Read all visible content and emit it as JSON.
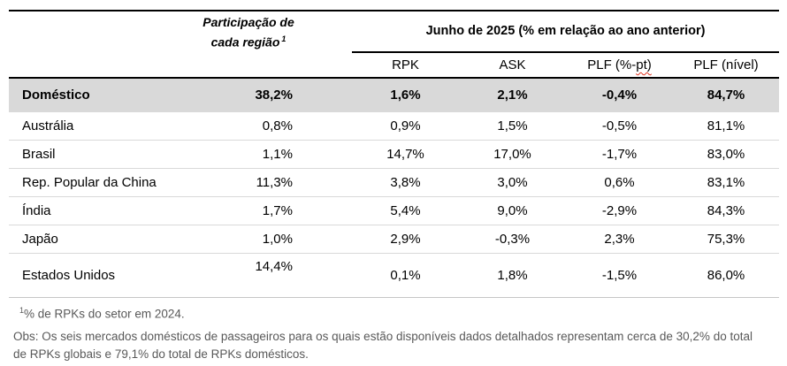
{
  "table": {
    "header": {
      "participation_line1": "Participação de",
      "participation_line2": "cada região",
      "participation_sup": "1",
      "period_title": "Junho de 2025 (% em relação ao ano anterior)",
      "columns": [
        "RPK",
        "ASK",
        "PLF (%-pt)",
        "PLF (nível)"
      ],
      "plf_pt_parts": {
        "prefix": "PLF (%-",
        "marked": "pt)"
      }
    },
    "rows": [
      {
        "region": "Doméstico",
        "participation": "38,2%",
        "rpk": "1,6%",
        "ask": "2,1%",
        "plf_pt": "-0,4%",
        "plf_nivel": "84,7%"
      },
      {
        "region": "Austrália",
        "participation": "0,8%",
        "rpk": "0,9%",
        "ask": "1,5%",
        "plf_pt": "-0,5%",
        "plf_nivel": "81,1%"
      },
      {
        "region": "Brasil",
        "participation": "1,1%",
        "rpk": "14,7%",
        "ask": "17,0%",
        "plf_pt": "-1,7%",
        "plf_nivel": "83,0%"
      },
      {
        "region": "Rep. Popular da China",
        "participation": "11,3%",
        "rpk": "3,8%",
        "ask": "3,0%",
        "plf_pt": "0,6%",
        "plf_nivel": "83,1%"
      },
      {
        "region": "Índia",
        "participation": "1,7%",
        "rpk": "5,4%",
        "ask": "9,0%",
        "plf_pt": "-2,9%",
        "plf_nivel": "84,3%"
      },
      {
        "region": "Japão",
        "participation": "1,0%",
        "rpk": "2,9%",
        "ask": "-0,3%",
        "plf_pt": "2,3%",
        "plf_nivel": "75,3%"
      },
      {
        "region": "Estados Unidos",
        "participation": "14,4%",
        "rpk": "0,1%",
        "ask": "1,8%",
        "plf_pt": "-1,5%",
        "plf_nivel": "86,0%"
      }
    ]
  },
  "footnotes": {
    "fn1_sup": "1",
    "fn1_text": "% de RPKs do setor em 2024.",
    "obs_lines": [
      "Obs: Os seis mercados domésticos de passageiros para os quais estão disponíveis dados detalhados representam cerca de 30,2% do total",
      "de RPKs globais e 79,1% do total de RPKs domésticos."
    ]
  },
  "colors": {
    "highlight_row_bg": "#d9d9d9",
    "rule_dark": "#000000",
    "rule_light": "#d9d9d9",
    "bottom_rule": "#c6c6c6",
    "footnote_text": "#595959",
    "spellcheck_squiggle": "#e0321e"
  }
}
